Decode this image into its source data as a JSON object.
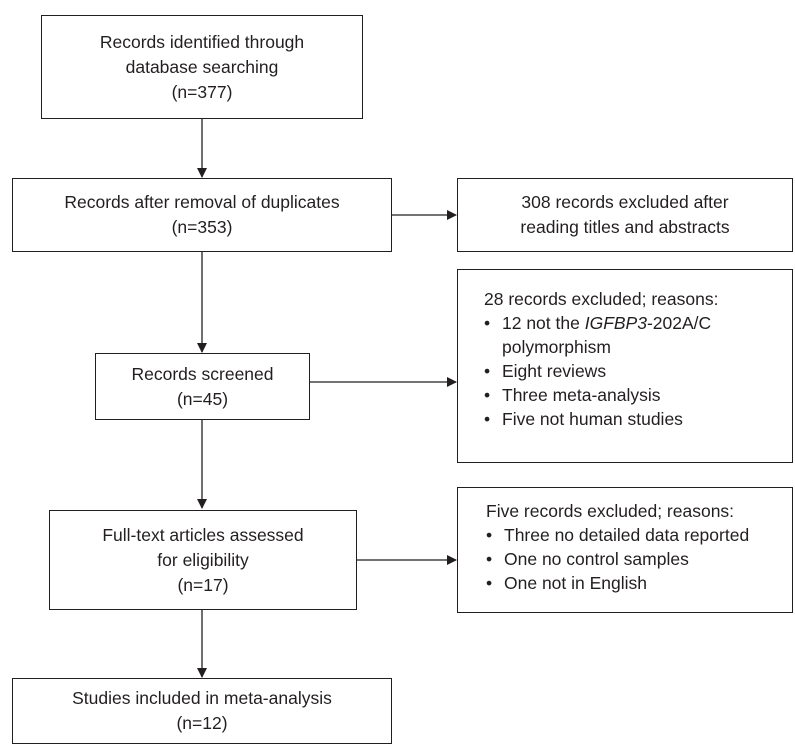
{
  "boxes": {
    "identified": {
      "line1": "Records identified through",
      "line2": "database searching",
      "count": "(n=377)"
    },
    "deduplicated": {
      "line1": "Records after removal of duplicates",
      "count": "(n=353)"
    },
    "excluded_titles": {
      "line1": "308 records excluded after",
      "line2": "reading titles and abstracts"
    },
    "screened": {
      "line1": "Records screened",
      "count": "(n=45)"
    },
    "excluded_screening": {
      "heading": "28 records excluded; reasons:",
      "reason1_pre": "12 not the ",
      "reason1_gene": "IGFBP3",
      "reason1_post": "-202A/C",
      "reason1_cont": "polymorphism",
      "reason2": "Eight reviews",
      "reason3": "Three meta-analysis",
      "reason4": "Five not human studies"
    },
    "fulltext": {
      "line1": "Full-text articles assessed",
      "line2": "for eligibility",
      "count": "(n=17)"
    },
    "excluded_fulltext": {
      "heading": "Five records excluded; reasons:",
      "reason1": "Three no detailed data reported",
      "reason2": "One no control samples",
      "reason3": "One not in English"
    },
    "included": {
      "line1": "Studies included in meta-analysis",
      "count": "(n=12)"
    }
  }
}
